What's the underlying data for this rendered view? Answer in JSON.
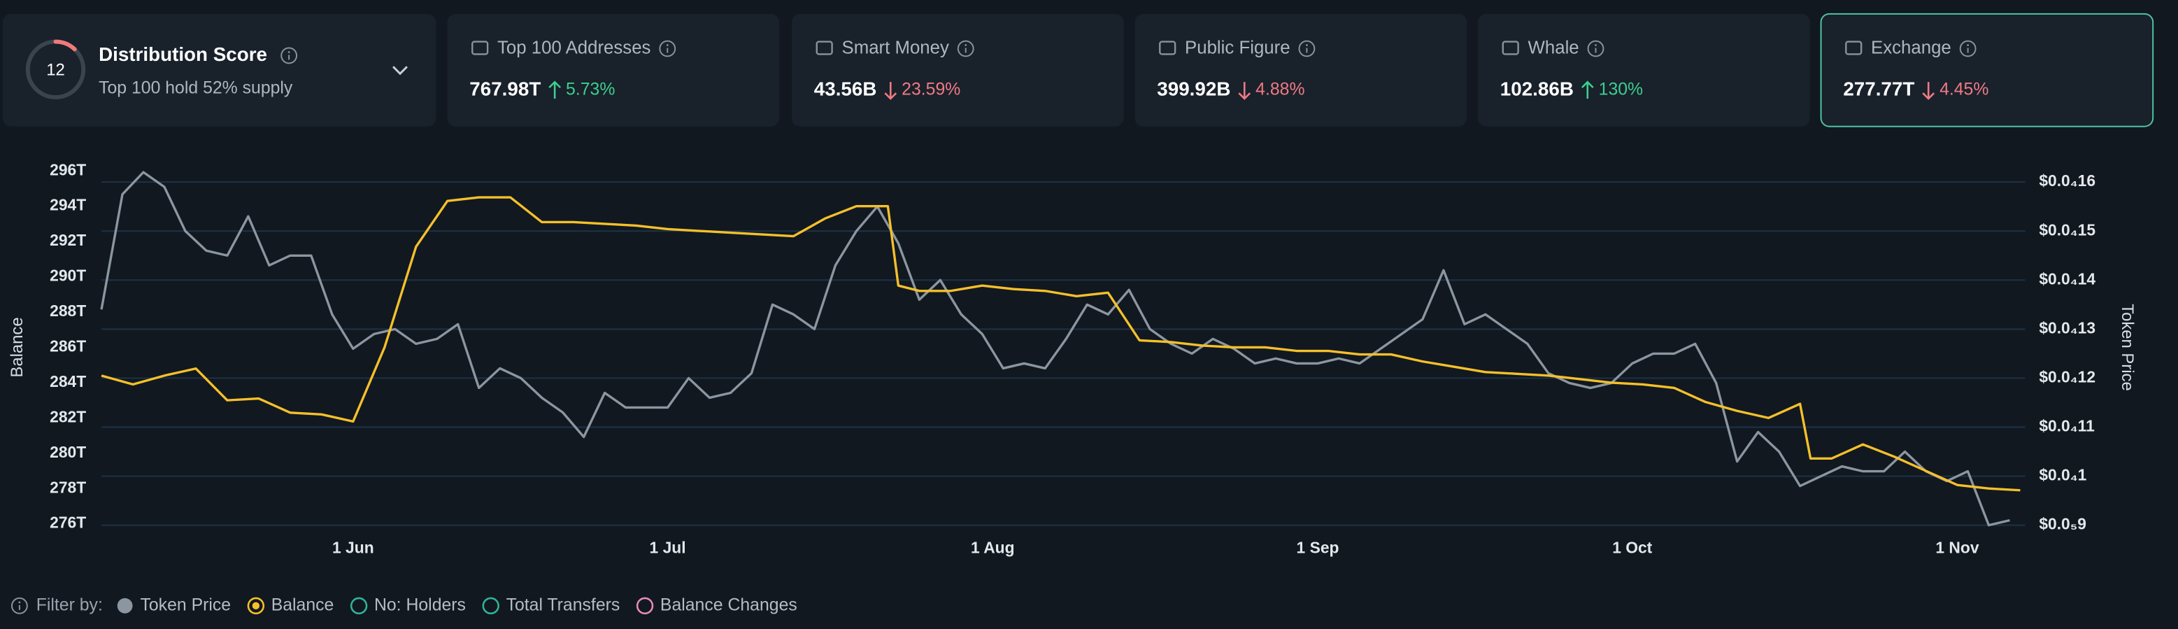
{
  "distribution": {
    "score": 12,
    "title": "Distribution Score",
    "subtitle": "Top 100 hold 52% supply"
  },
  "cards": [
    {
      "label": "Top 100 Addresses",
      "value": "767.98T",
      "change": "5.73%",
      "direction": "up",
      "selected": false
    },
    {
      "label": "Smart Money",
      "value": "43.56B",
      "change": "23.59%",
      "direction": "down",
      "selected": false
    },
    {
      "label": "Public Figure",
      "value": "399.92B",
      "change": "4.88%",
      "direction": "down",
      "selected": false
    },
    {
      "label": "Whale",
      "value": "102.86B",
      "change": "130%",
      "direction": "up",
      "selected": false
    },
    {
      "label": "Exchange",
      "value": "277.77T",
      "change": "4.45%",
      "direction": "down",
      "selected": true
    }
  ],
  "chart_data": {
    "type": "line",
    "ylabel": "Balance",
    "y2label": "Token Price",
    "grid": true,
    "xlim": [
      0,
      184
    ],
    "xticks": [
      {
        "value": 24,
        "label": "1 Jun"
      },
      {
        "value": 54,
        "label": "1 Jul"
      },
      {
        "value": 85,
        "label": "1 Aug"
      },
      {
        "value": 116,
        "label": "1 Sep"
      },
      {
        "value": 146,
        "label": "1 Oct"
      },
      {
        "value": 177,
        "label": "1 Nov"
      }
    ],
    "ylim": [
      276,
      296
    ],
    "yticks": [
      {
        "value": 296,
        "label": "296T"
      },
      {
        "value": 294,
        "label": "294T"
      },
      {
        "value": 292,
        "label": "292T"
      },
      {
        "value": 290,
        "label": "290T"
      },
      {
        "value": 288,
        "label": "288T"
      },
      {
        "value": 286,
        "label": "286T"
      },
      {
        "value": 284,
        "label": "284T"
      },
      {
        "value": 282,
        "label": "282T"
      },
      {
        "value": 280,
        "label": "280T"
      },
      {
        "value": 278,
        "label": "278T"
      },
      {
        "value": 276,
        "label": "276T"
      }
    ],
    "y2lim": [
      9e-06,
      1.6e-05
    ],
    "y2ticks": [
      {
        "value": 1.6e-05,
        "label": "$0.0₄16"
      },
      {
        "value": 1.5e-05,
        "label": "$0.0₄15"
      },
      {
        "value": 1.4e-05,
        "label": "$0.0₄14"
      },
      {
        "value": 1.3e-05,
        "label": "$0.0₄13"
      },
      {
        "value": 1.2e-05,
        "label": "$0.0₄12"
      },
      {
        "value": 1.1e-05,
        "label": "$0.0₄11"
      },
      {
        "value": 1e-05,
        "label": "$0.0₄1"
      },
      {
        "value": 9e-06,
        "label": "$0.0₅9"
      }
    ],
    "series": [
      {
        "name": "Token Price",
        "color": "#8b96a0",
        "axis": "y2",
        "x": [
          0,
          2,
          4,
          6,
          8,
          10,
          12,
          14,
          16,
          18,
          20,
          22,
          24,
          26,
          28,
          30,
          32,
          34,
          36,
          38,
          40,
          42,
          44,
          46,
          48,
          50,
          52,
          54,
          56,
          58,
          60,
          62,
          64,
          66,
          68,
          70,
          72,
          74,
          76,
          78,
          80,
          82,
          84,
          86,
          88,
          90,
          92,
          94,
          96,
          98,
          100,
          102,
          104,
          106,
          108,
          110,
          112,
          114,
          116,
          118,
          120,
          122,
          124,
          126,
          128,
          130,
          132,
          134,
          136,
          138,
          140,
          142,
          144,
          146,
          148,
          150,
          152,
          154,
          156,
          158,
          160,
          162,
          164,
          166,
          168,
          170,
          172,
          174,
          176,
          178,
          180,
          182
        ],
        "values": [
          1.34e-05,
          1.575e-05,
          1.62e-05,
          1.59e-05,
          1.5e-05,
          1.46e-05,
          1.45e-05,
          1.53e-05,
          1.43e-05,
          1.45e-05,
          1.45e-05,
          1.33e-05,
          1.26e-05,
          1.29e-05,
          1.3e-05,
          1.27e-05,
          1.28e-05,
          1.31e-05,
          1.18e-05,
          1.22e-05,
          1.2e-05,
          1.16e-05,
          1.13e-05,
          1.08e-05,
          1.17e-05,
          1.14e-05,
          1.14e-05,
          1.14e-05,
          1.2e-05,
          1.16e-05,
          1.17e-05,
          1.21e-05,
          1.35e-05,
          1.33e-05,
          1.3e-05,
          1.43e-05,
          1.5e-05,
          1.55e-05,
          1.475e-05,
          1.36e-05,
          1.4e-05,
          1.33e-05,
          1.29e-05,
          1.22e-05,
          1.23e-05,
          1.22e-05,
          1.28e-05,
          1.35e-05,
          1.33e-05,
          1.38e-05,
          1.3e-05,
          1.27e-05,
          1.25e-05,
          1.28e-05,
          1.26e-05,
          1.23e-05,
          1.24e-05,
          1.23e-05,
          1.23e-05,
          1.24e-05,
          1.23e-05,
          1.26e-05,
          1.29e-05,
          1.32e-05,
          1.42e-05,
          1.31e-05,
          1.33e-05,
          1.3e-05,
          1.27e-05,
          1.21e-05,
          1.19e-05,
          1.18e-05,
          1.19e-05,
          1.23e-05,
          1.25e-05,
          1.25e-05,
          1.27e-05,
          1.19e-05,
          1.03e-05,
          1.09e-05,
          1.05e-05,
          9.8e-06,
          1e-05,
          1.02e-05,
          1.01e-05,
          1.01e-05,
          1.05e-05,
          1.01e-05,
          9.9e-06,
          1.01e-05,
          9e-06,
          9.1e-06
        ]
      },
      {
        "name": "Balance",
        "color": "#f5c02a",
        "axis": "y",
        "x": [
          0,
          3,
          6,
          9,
          12,
          15,
          18,
          21,
          24,
          27,
          30,
          33,
          36,
          39,
          42,
          45,
          48,
          51,
          54,
          57,
          60,
          63,
          66,
          69,
          72,
          75,
          76,
          78,
          81,
          84,
          87,
          90,
          93,
          96,
          99,
          102,
          105,
          108,
          111,
          114,
          117,
          120,
          123,
          126,
          129,
          132,
          135,
          138,
          141,
          144,
          147,
          150,
          153,
          156,
          159,
          162,
          163,
          165,
          168,
          171,
          174,
          177,
          180,
          183
        ],
        "values": [
          284.4,
          283.9,
          284.4,
          284.8,
          283.0,
          283.1,
          282.3,
          282.2,
          281.8,
          286.0,
          291.7,
          294.3,
          294.5,
          294.5,
          293.1,
          293.1,
          293.0,
          292.9,
          292.7,
          292.6,
          292.5,
          292.4,
          292.3,
          293.3,
          294.0,
          294.0,
          289.5,
          289.2,
          289.2,
          289.5,
          289.3,
          289.2,
          288.9,
          289.1,
          286.4,
          286.3,
          286.1,
          286.0,
          286.0,
          285.8,
          285.8,
          285.6,
          285.6,
          285.2,
          284.9,
          284.6,
          284.5,
          284.4,
          284.2,
          284.0,
          283.9,
          283.7,
          282.9,
          282.4,
          282.0,
          282.8,
          279.7,
          279.7,
          280.5,
          279.8,
          279.0,
          278.2,
          278.0,
          277.9
        ]
      }
    ]
  },
  "filter_label": "Filter by:",
  "filters": [
    {
      "name": "No: Holders",
      "color": "#2fb39a"
    },
    {
      "name": "Total Transfers",
      "color": "#2fb39a"
    },
    {
      "name": "Balance Changes",
      "color": "#e58ab8"
    }
  ]
}
